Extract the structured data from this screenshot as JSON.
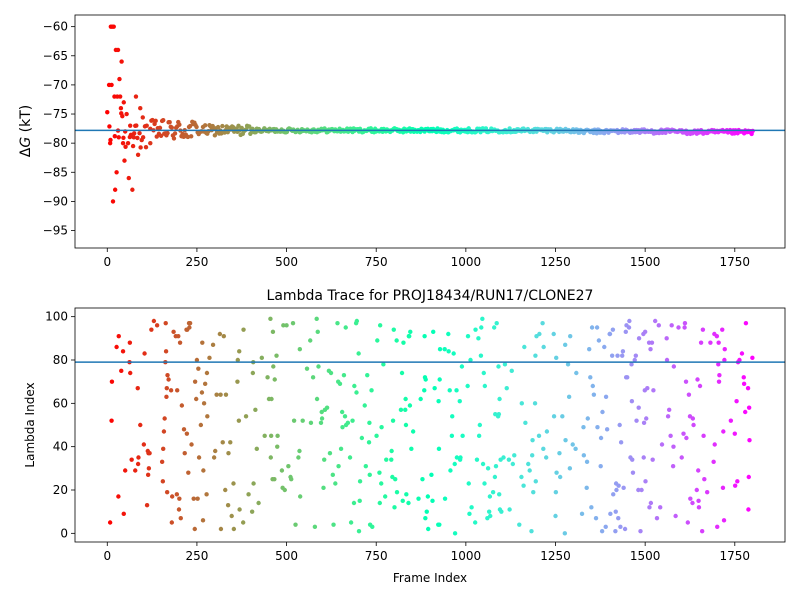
{
  "chart_data": [
    {
      "type": "scatter",
      "title": "",
      "xlabel": "",
      "ylabel_symbol": "Δ",
      "ylabel_italic": "G",
      "ylabel_unit": " (kT)",
      "xlim": [
        -90,
        1890
      ],
      "ylim": [
        -98,
        -58
      ],
      "xticks": [
        0,
        250,
        500,
        750,
        1000,
        1250,
        1500,
        1750
      ],
      "yticks": [
        -60,
        -65,
        -70,
        -75,
        -80,
        -85,
        -90,
        -95
      ],
      "reference_line": -77.8,
      "reference_color": "#1f77b4",
      "colormap": "rainbow",
      "n_frames": 1800,
      "grid": false,
      "series": [
        {
          "description_points": [
            {
              "x": 5,
              "y": -70
            },
            {
              "x": 8,
              "y": -80
            },
            {
              "x": 10,
              "y": -60
            },
            {
              "x": 12,
              "y": -70
            },
            {
              "x": 14,
              "y": -60
            },
            {
              "x": 16,
              "y": -90
            },
            {
              "x": 18,
              "y": -60
            },
            {
              "x": 20,
              "y": -72
            },
            {
              "x": 22,
              "y": -88
            },
            {
              "x": 24,
              "y": -64
            },
            {
              "x": 26,
              "y": -85
            },
            {
              "x": 28,
              "y": -72
            },
            {
              "x": 30,
              "y": -64
            },
            {
              "x": 32,
              "y": -79
            },
            {
              "x": 34,
              "y": -69
            },
            {
              "x": 36,
              "y": -72
            },
            {
              "x": 38,
              "y": -74
            },
            {
              "x": 40,
              "y": -66
            },
            {
              "x": 44,
              "y": -80
            },
            {
              "x": 46,
              "y": -73
            },
            {
              "x": 48,
              "y": -83
            },
            {
              "x": 50,
              "y": -78
            },
            {
              "x": 54,
              "y": -75
            },
            {
              "x": 58,
              "y": -80
            },
            {
              "x": 60,
              "y": -86
            },
            {
              "x": 64,
              "y": -77
            },
            {
              "x": 70,
              "y": -88
            },
            {
              "x": 74,
              "y": -79
            },
            {
              "x": 80,
              "y": -72
            },
            {
              "x": 86,
              "y": -82
            },
            {
              "x": 92,
              "y": -74
            },
            {
              "x": 100,
              "y": -79
            },
            {
              "x": 110,
              "y": -77
            },
            {
              "x": 120,
              "y": -80
            }
          ]
        }
      ]
    },
    {
      "type": "scatter",
      "title": "Lambda Trace for PROJ18434/RUN17/CLONE27",
      "xlabel": "Frame Index",
      "ylabel": "Lambda Index",
      "xlim": [
        -90,
        1890
      ],
      "ylim": [
        -4,
        104
      ],
      "xticks": [
        0,
        250,
        500,
        750,
        1000,
        1250,
        1500,
        1750
      ],
      "yticks": [
        0,
        20,
        40,
        60,
        80,
        100
      ],
      "reference_line": 79,
      "reference_color": "#1f77b4",
      "colormap": "rainbow",
      "n_frames": 1800,
      "grid": false
    }
  ]
}
